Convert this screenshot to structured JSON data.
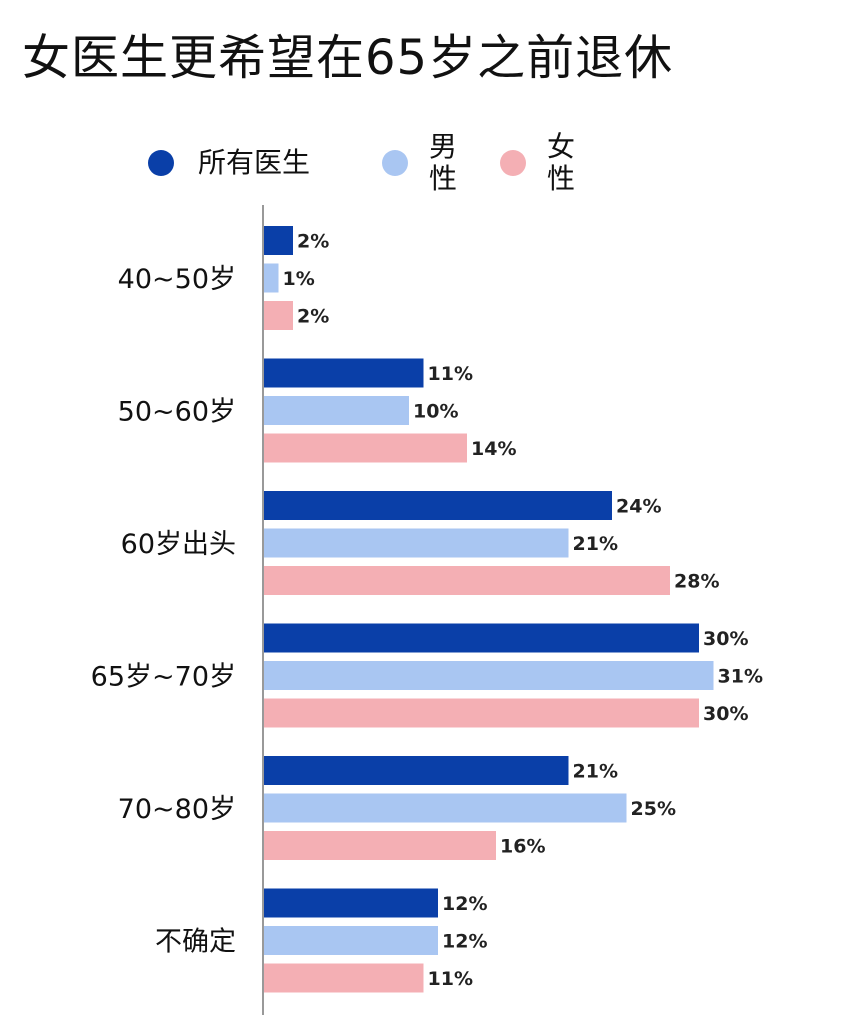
{
  "title": "女医生更希望在65岁之前退休",
  "legend": [
    {
      "label": "所有医生",
      "color": "#0a3fa8"
    },
    {
      "label": "男性",
      "color": "#a9c6f2"
    },
    {
      "label": "女性",
      "color": "#f4afb4"
    }
  ],
  "chart_data": {
    "type": "bar",
    "orientation": "horizontal",
    "categories": [
      "40~50岁",
      "50~60岁",
      "60岁出头",
      "65岁~70岁",
      "70~80岁",
      "不确定"
    ],
    "series": [
      {
        "name": "所有医生",
        "color": "#0a3fa8",
        "values": [
          2,
          11,
          24,
          30,
          21,
          12
        ]
      },
      {
        "name": "男性",
        "color": "#a9c6f2",
        "values": [
          1,
          10,
          21,
          31,
          25,
          12
        ]
      },
      {
        "name": "女性",
        "color": "#f4afb4",
        "values": [
          2,
          14,
          28,
          30,
          16,
          11
        ]
      }
    ],
    "value_suffix": "%",
    "xlim": [
      0,
      31
    ],
    "grid": false,
    "legend_position": "top"
  }
}
